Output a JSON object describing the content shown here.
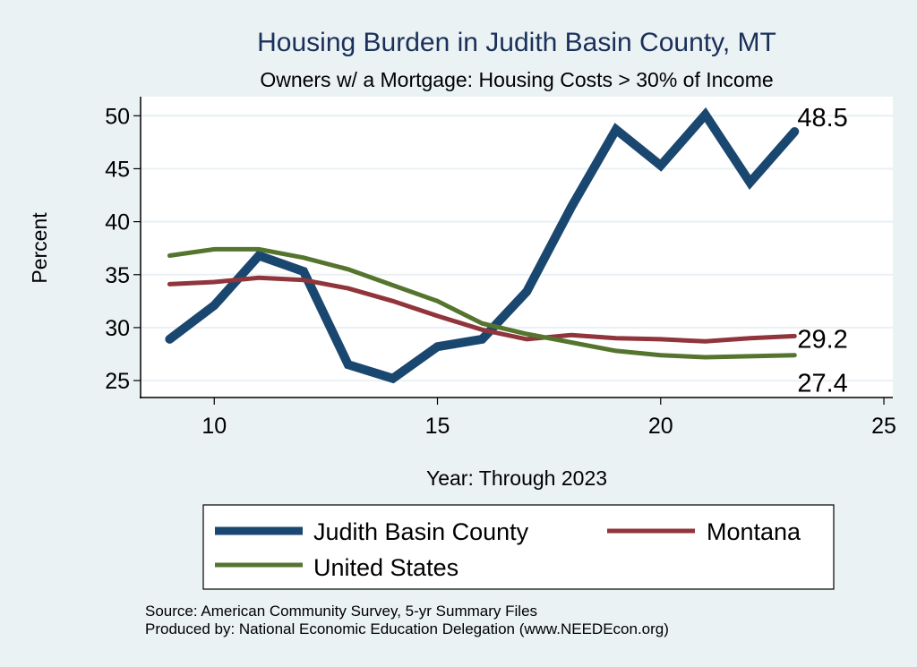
{
  "chart_data": {
    "type": "line",
    "title": "Housing Burden in Judith Basin County, MT",
    "subtitle": "Owners w/ a Mortgage: Housing Costs > 30% of Income",
    "xlabel": "Year: Through 2023",
    "ylabel": "Percent",
    "xlim": [
      8.35,
      25.2
    ],
    "ylim": [
      23.4,
      51.8
    ],
    "xticks": [
      10,
      15,
      20,
      25
    ],
    "yticks": [
      25,
      30,
      35,
      40,
      45,
      50
    ],
    "grid": true,
    "legend_position": "bottom",
    "x": [
      9,
      10,
      11,
      12,
      13,
      14,
      15,
      16,
      17,
      18,
      19,
      20,
      21,
      22,
      23
    ],
    "series": [
      {
        "name": "Judith Basin County",
        "color": "#1a476f",
        "width": 10,
        "end_label": "48.5",
        "values": [
          28.9,
          32.1,
          36.8,
          35.3,
          26.5,
          25.2,
          28.2,
          28.9,
          33.4,
          41.4,
          48.7,
          45.3,
          50.1,
          43.7,
          48.5
        ]
      },
      {
        "name": "Montana",
        "color": "#90353b",
        "width": 5,
        "end_label": "29.2",
        "values": [
          34.1,
          34.3,
          34.7,
          34.5,
          33.7,
          32.5,
          31.1,
          29.8,
          28.9,
          29.3,
          29.0,
          28.9,
          28.7,
          29.0,
          29.2
        ]
      },
      {
        "name": "United States",
        "color": "#55752f",
        "width": 5,
        "end_label": "27.4",
        "values": [
          36.8,
          37.4,
          37.4,
          36.6,
          35.5,
          34.0,
          32.5,
          30.4,
          29.4,
          28.6,
          27.8,
          27.4,
          27.2,
          27.3,
          27.4
        ]
      }
    ],
    "notes": [
      "Source: American Community Survey, 5-yr Summary Files",
      "Produced by: National Economic Education Delegation (www.NEEDEcon.org)"
    ]
  }
}
